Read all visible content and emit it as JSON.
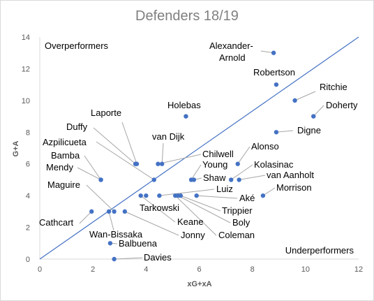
{
  "chart_data": {
    "type": "scatter",
    "title": "Defenders 18/19",
    "xlabel": "xG+xA",
    "ylabel": "G+A",
    "xlim": [
      0,
      12
    ],
    "ylim": [
      0,
      14
    ],
    "x_ticks": [
      "0",
      "2",
      "4",
      "6",
      "8",
      "10",
      "12"
    ],
    "y_ticks": [
      "0",
      "2",
      "4",
      "6",
      "8",
      "10",
      "12",
      "14"
    ],
    "grid": false,
    "colors": {
      "marker": "#4472c4",
      "reference_line": "#4472c4",
      "leader_line": "#a6a6a6",
      "text": "#000000"
    },
    "reference_line": {
      "from": [
        0,
        0
      ],
      "to": [
        12,
        14
      ]
    },
    "regions": {
      "upper": "Overperformers",
      "lower": "Underperformers"
    },
    "points": [
      {
        "name": "Alexander-Arnold",
        "x": 8.8,
        "y": 13
      },
      {
        "name": "Robertson",
        "x": 8.9,
        "y": 11
      },
      {
        "name": "Ritchie",
        "x": 9.6,
        "y": 10
      },
      {
        "name": "Doherty",
        "x": 10.3,
        "y": 9
      },
      {
        "name": "Holebas",
        "x": 5.5,
        "y": 9
      },
      {
        "name": "Digne",
        "x": 8.9,
        "y": 8
      },
      {
        "name": "Laporte",
        "x": 3.65,
        "y": 6
      },
      {
        "name": "Duffy",
        "x": 3.6,
        "y": 6
      },
      {
        "name": "van Dijk",
        "x": 4.6,
        "y": 6
      },
      {
        "name": "Chilwell",
        "x": 4.45,
        "y": 6
      },
      {
        "name": "Alonso",
        "x": 7.45,
        "y": 6
      },
      {
        "name": "Azpilicueta",
        "x": 4.3,
        "y": 5
      },
      {
        "name": "Bamba",
        "x": 2.3,
        "y": 5
      },
      {
        "name": "Mendy",
        "x": 2.3,
        "y": 5
      },
      {
        "name": "Young",
        "x": 5.7,
        "y": 5
      },
      {
        "name": "Shaw",
        "x": 5.8,
        "y": 5
      },
      {
        "name": "Kolasinac",
        "x": 7.2,
        "y": 5
      },
      {
        "name": "van Aanholt",
        "x": 7.5,
        "y": 5
      },
      {
        "name": "Luiz",
        "x": 4.5,
        "y": 4
      },
      {
        "name": "Aké",
        "x": 5.9,
        "y": 4
      },
      {
        "name": "Morrison",
        "x": 8.4,
        "y": 4
      },
      {
        "name": "Tarkowski",
        "x": 4.0,
        "y": 4
      },
      {
        "name": "Trippier",
        "x": 5.3,
        "y": 4
      },
      {
        "name": "Boly",
        "x": 5.2,
        "y": 4
      },
      {
        "name": "Keane",
        "x": 3.8,
        "y": 4
      },
      {
        "name": "Coleman",
        "x": 5.1,
        "y": 4
      },
      {
        "name": "Maguire",
        "x": 2.8,
        "y": 3
      },
      {
        "name": "Cathcart",
        "x": 1.95,
        "y": 3
      },
      {
        "name": "Wan-Bissaka",
        "x": 2.6,
        "y": 3
      },
      {
        "name": "Jonny",
        "x": 3.2,
        "y": 3
      },
      {
        "name": "Balbuena",
        "x": 2.65,
        "y": 1
      },
      {
        "name": "Davies",
        "x": 2.8,
        "y": 0
      }
    ]
  }
}
